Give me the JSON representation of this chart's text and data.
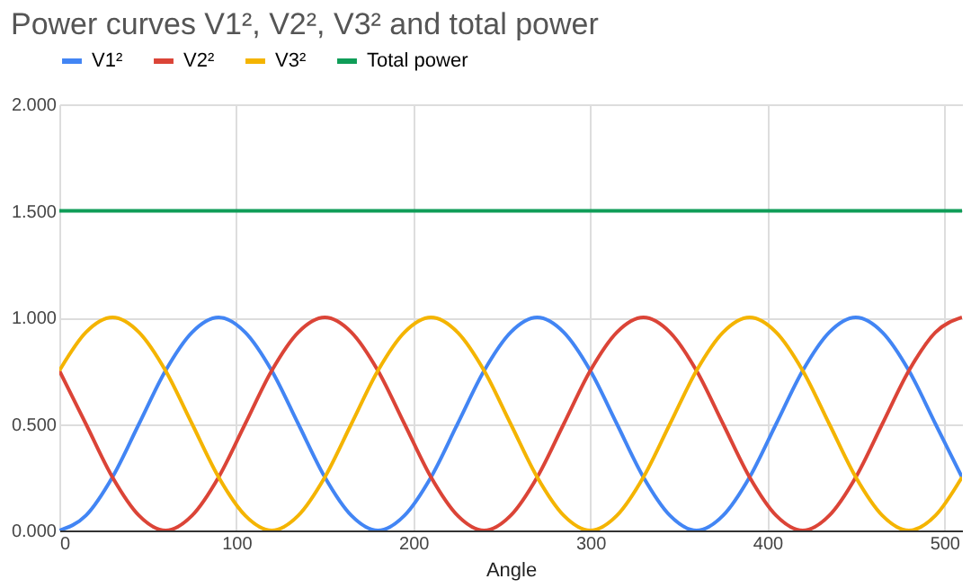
{
  "chart_data": {
    "type": "line",
    "title": "Power curves V1², V2², V3² and total power",
    "xlabel": "Angle",
    "x": [
      0,
      15,
      30,
      45,
      60,
      75,
      90,
      105,
      120,
      135,
      150,
      165,
      180,
      195,
      210,
      225,
      240,
      255,
      270,
      285,
      300,
      315,
      330,
      345,
      360,
      375,
      390,
      405,
      420,
      435,
      450,
      465,
      480,
      495,
      510
    ],
    "series": [
      {
        "name": "V1²",
        "color": "#4285f4",
        "values": [
          0,
          0.07,
          0.25,
          0.5,
          0.75,
          0.93,
          1,
          0.93,
          0.75,
          0.5,
          0.25,
          0.07,
          0,
          0.07,
          0.25,
          0.5,
          0.75,
          0.93,
          1,
          0.93,
          0.75,
          0.5,
          0.25,
          0.07,
          0,
          0.07,
          0.25,
          0.5,
          0.75,
          0.93,
          1,
          0.93,
          0.75,
          0.5,
          0.25
        ]
      },
      {
        "name": "V2²",
        "color": "#db4437",
        "values": [
          0.75,
          0.5,
          0.25,
          0.07,
          0,
          0.07,
          0.25,
          0.5,
          0.75,
          0.93,
          1,
          0.93,
          0.75,
          0.5,
          0.25,
          0.07,
          0,
          0.07,
          0.25,
          0.5,
          0.75,
          0.93,
          1,
          0.93,
          0.75,
          0.5,
          0.25,
          0.07,
          0,
          0.07,
          0.25,
          0.5,
          0.75,
          0.93,
          1
        ]
      },
      {
        "name": "V3²",
        "color": "#f4b400",
        "values": [
          0.75,
          0.93,
          1,
          0.93,
          0.75,
          0.5,
          0.25,
          0.07,
          0,
          0.07,
          0.25,
          0.5,
          0.75,
          0.93,
          1,
          0.93,
          0.75,
          0.5,
          0.25,
          0.07,
          0,
          0.07,
          0.25,
          0.5,
          0.75,
          0.93,
          1,
          0.93,
          0.75,
          0.5,
          0.25,
          0.07,
          0,
          0.07,
          0.25
        ]
      },
      {
        "name": "Total power",
        "color": "#0f9d58",
        "values": [
          1.5,
          1.5,
          1.5,
          1.5,
          1.5,
          1.5,
          1.5,
          1.5,
          1.5,
          1.5,
          1.5,
          1.5,
          1.5,
          1.5,
          1.5,
          1.5,
          1.5,
          1.5,
          1.5,
          1.5,
          1.5,
          1.5,
          1.5,
          1.5,
          1.5,
          1.5,
          1.5,
          1.5,
          1.5,
          1.5,
          1.5,
          1.5,
          1.5,
          1.5,
          1.5
        ]
      }
    ],
    "xlim": [
      0,
      510
    ],
    "xticks": [
      0,
      100,
      200,
      300,
      400,
      500
    ],
    "ylim": [
      0,
      2
    ],
    "yticks": [
      {
        "value": 0,
        "label": "0.000"
      },
      {
        "value": 0.5,
        "label": "0.500"
      },
      {
        "value": 1,
        "label": "1.000"
      },
      {
        "value": 1.5,
        "label": "1.500"
      },
      {
        "value": 2,
        "label": "2.000"
      }
    ],
    "grid": true,
    "legend": "top",
    "marker": "none",
    "line_style": "solid"
  }
}
